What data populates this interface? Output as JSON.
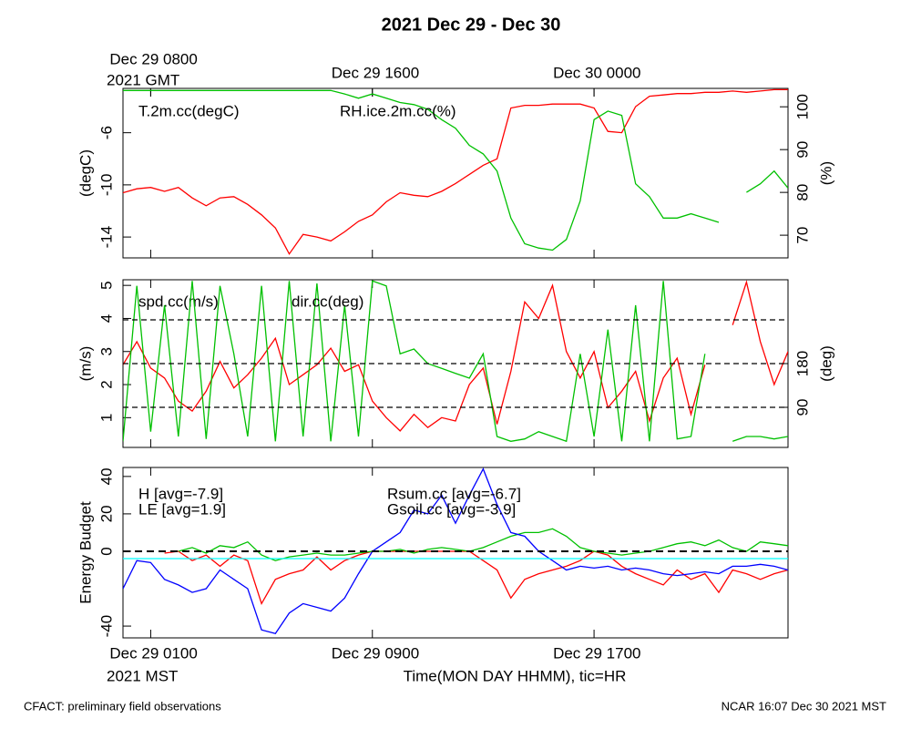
{
  "title": "2021 Dec 29 - Dec 30",
  "footer_left": "CFACT: preliminary field observations",
  "footer_right": "NCAR 16:07 Dec 30 2021 MST",
  "chart_data": [
    {
      "type": "line",
      "x": [
        0,
        0.5,
        1,
        1.5,
        2,
        2.5,
        3,
        3.5,
        4,
        4.5,
        5,
        5.5,
        6,
        6.5,
        7,
        7.5,
        8,
        8.5,
        9,
        9.5,
        10,
        10.5,
        11,
        11.5,
        12,
        12.5,
        13,
        13.5,
        14,
        14.5,
        15,
        15.5,
        16,
        16.5,
        17,
        17.5,
        18,
        18.5,
        19,
        19.5,
        20,
        20.5,
        21,
        21.5,
        22,
        22.5,
        23,
        23.5,
        24
      ],
      "xlim": [
        0,
        24
      ],
      "xticks": [
        1,
        9,
        17
      ],
      "x2ticks": [
        {
          "value": 1,
          "label": "Dec 29 0800"
        },
        {
          "value": 9,
          "label": "Dec 29 1600"
        },
        {
          "value": 17,
          "label": "Dec 30 0000"
        }
      ],
      "x2_zone": "2021 GMT",
      "ylim": [
        -15.6,
        -2.6
      ],
      "yticks": [
        -14,
        -10,
        -6
      ],
      "ylabel": "(degC)",
      "y2lim": [
        64.7,
        104.3
      ],
      "y2ticks": [
        70,
        80,
        90,
        100
      ],
      "y2label": "(%)",
      "series": [
        {
          "name": "T.2m.cc(degC)",
          "color": "#ff0000",
          "values": [
            -10.6,
            -10.3,
            -10.2,
            -10.5,
            -10.2,
            -11,
            -11.6,
            -11,
            -10.9,
            -11.5,
            -12.3,
            -13.3,
            -15.3,
            -13.8,
            -14,
            -14.3,
            -13.6,
            -12.8,
            -12.3,
            -11.3,
            -10.6,
            -10.8,
            -10.9,
            -10.5,
            -9.9,
            -9.2,
            -8.5,
            -8,
            -4.1,
            -3.9,
            -3.9,
            -3.8,
            -3.8,
            -3.8,
            -4.1,
            -5.9,
            -6,
            -4,
            -3.2,
            -3.1,
            -3.0,
            -3.0,
            -2.9,
            -2.9,
            -2.8,
            -2.9,
            -2.8,
            -2.7,
            -2.7
          ]
        },
        {
          "name": "RH.ice.2m.cc(%)",
          "color": "#00c000",
          "axis": "y2",
          "values": [
            103.8,
            103.8,
            103.8,
            103.8,
            103.8,
            103.8,
            103.8,
            103.8,
            103.8,
            103.8,
            103.8,
            103.8,
            103.8,
            103.8,
            103.8,
            103.8,
            103,
            102,
            103,
            102,
            101,
            100.5,
            99.4,
            97,
            95,
            91,
            89,
            85,
            74,
            68,
            67,
            66.5,
            69,
            78,
            97,
            99,
            98,
            82,
            79,
            74,
            74,
            75,
            74,
            73,
            null,
            80,
            82,
            85,
            81
          ]
        }
      ]
    },
    {
      "type": "line",
      "x": [
        0,
        0.5,
        1,
        1.5,
        2,
        2.5,
        3,
        3.5,
        4,
        4.5,
        5,
        5.5,
        6,
        6.5,
        7,
        7.5,
        8,
        8.5,
        9,
        9.5,
        10,
        10.5,
        11,
        11.5,
        12,
        12.5,
        13,
        13.5,
        14,
        14.5,
        15,
        15.5,
        16,
        16.5,
        17,
        17.5,
        18,
        18.5,
        19,
        19.5,
        20,
        20.5,
        21,
        21.5,
        22,
        22.5,
        23,
        23.5,
        24
      ],
      "xlim": [
        0,
        24
      ],
      "xticks": [
        1,
        9,
        17
      ],
      "ylim": [
        0.1,
        5.17
      ],
      "yticks": [
        1,
        2,
        3,
        4,
        5
      ],
      "ylabel": "(m/s)",
      "y2lim": [
        7.5,
        352.5
      ],
      "y2ticks": [
        90,
        180
      ],
      "y2label": "(deg)",
      "ref_lines_y2": [
        90,
        180,
        270
      ],
      "series": [
        {
          "name": "spd.cc(m/s)",
          "color": "#ff0000",
          "values": [
            2.6,
            3.3,
            2.5,
            2.2,
            1.5,
            1.2,
            1.8,
            2.7,
            1.9,
            2.3,
            2.8,
            3.4,
            2.0,
            2.3,
            2.6,
            3.1,
            2.4,
            2.6,
            1.5,
            1.0,
            0.6,
            1.1,
            0.7,
            1.0,
            0.9,
            2.0,
            2.5,
            0.8,
            2.4,
            4.5,
            4.0,
            5.0,
            3.0,
            2.2,
            3.0,
            1.3,
            1.8,
            2.4,
            0.9,
            2.2,
            2.8,
            1.1,
            2.6,
            null,
            3.8,
            5.1,
            3.3,
            2.0,
            3.0
          ]
        },
        {
          "name": "dir.cc(deg)",
          "color": "#00c000",
          "axis": "y2",
          "values": [
            20,
            340,
            40,
            300,
            30,
            350,
            25,
            340,
            200,
            30,
            340,
            20,
            350,
            30,
            345,
            20,
            300,
            30,
            350,
            340,
            200,
            210,
            180,
            170,
            160,
            150,
            200,
            30,
            20,
            25,
            40,
            30,
            20,
            200,
            30,
            250,
            20,
            300,
            20,
            350,
            25,
            30,
            200,
            null,
            20,
            30,
            30,
            25,
            30
          ]
        }
      ]
    },
    {
      "type": "line",
      "x": [
        0,
        0.5,
        1,
        1.5,
        2,
        2.5,
        3,
        3.5,
        4,
        4.5,
        5,
        5.5,
        6,
        6.5,
        7,
        7.5,
        8,
        8.5,
        9,
        9.5,
        10,
        10.5,
        11,
        11.5,
        12,
        12.5,
        13,
        13.5,
        14,
        14.5,
        15,
        15.5,
        16,
        16.5,
        17,
        17.5,
        18,
        18.5,
        19,
        19.5,
        20,
        20.5,
        21,
        21.5,
        22,
        22.5,
        23,
        23.5,
        24
      ],
      "xlim": [
        0,
        24
      ],
      "xticks": [
        {
          "value": 1,
          "label": "Dec 29 0100"
        },
        {
          "value": 9,
          "label": "Dec 29 0900"
        },
        {
          "value": 17,
          "label": "Dec 29 1700"
        }
      ],
      "x_zone": "2021 MST",
      "xlabel": "Time(MON DAY HHMM), tic=HR",
      "ylim": [
        -46.3,
        44.8
      ],
      "yticks": [
        -40,
        0,
        20,
        40
      ],
      "ylabel": "Energy Budget",
      "ref_lines": [
        0
      ],
      "series": [
        {
          "name": "H [avg=-7.9]",
          "color": "#ff0000",
          "values": [
            null,
            null,
            null,
            -1,
            0,
            -5,
            -2,
            -8,
            -2,
            -5,
            -28,
            -15,
            -12,
            -10,
            -3,
            -10,
            -5,
            -2,
            0,
            0,
            0,
            0,
            0,
            0,
            0,
            0,
            -5,
            -10,
            -25,
            -15,
            -12,
            -10,
            -8,
            -5,
            0,
            -2,
            -8,
            -12,
            -15,
            -18,
            -10,
            -15,
            -12,
            -22,
            -10,
            -12,
            -15,
            -12,
            -10
          ]
        },
        {
          "name": "LE [avg=1.9]",
          "color": "#00c000",
          "values": [
            null,
            null,
            null,
            null,
            0,
            2,
            -1,
            3,
            2,
            5,
            -2,
            -5,
            -3,
            -2,
            -1,
            -2,
            -2,
            -1,
            0,
            0,
            1,
            -1,
            1,
            2,
            1,
            0,
            2,
            5,
            8,
            10,
            10,
            12,
            8,
            2,
            0,
            -1,
            -2,
            -1,
            0,
            2,
            4,
            5,
            3,
            6,
            2,
            0,
            5,
            4,
            3
          ]
        },
        {
          "name": "Rsum.cc [avg=-6.7]",
          "color": "#0000ff",
          "values": [
            -20,
            -5,
            -6,
            -15,
            -18,
            -22,
            -20,
            -10,
            -15,
            -20,
            -42,
            -44,
            -33,
            -28,
            -30,
            -32,
            -25,
            -12,
            0,
            5,
            10,
            22,
            20,
            30,
            15,
            30,
            44,
            25,
            10,
            8,
            0,
            -5,
            -10,
            -8,
            -9,
            -8,
            -10,
            -9,
            -10,
            -12,
            -13,
            -12,
            -11,
            -12,
            -8,
            -8,
            -7,
            -8,
            -10
          ]
        },
        {
          "name": "Gsoil.cc [avg=-3.9]",
          "color": "#00ffff",
          "values": [
            -3.9,
            -3.9,
            -3.9,
            -3.9,
            -3.9,
            -3.9,
            -3.9,
            -3.9,
            -3.9,
            -3.9,
            -3.9,
            -3.9,
            -3.9,
            -3.9,
            -3.9,
            -3.9,
            -3.9,
            -3.9,
            -3.9,
            -3.9,
            -3.9,
            -3.9,
            -3.9,
            -3.9,
            -3.9,
            -3.9,
            -3.9,
            -3.9,
            -3.9,
            -3.9,
            -3.9,
            -3.9,
            -3.9,
            -3.9,
            -3.9,
            -3.9,
            -3.9,
            -3.9,
            -3.9,
            -3.9,
            -3.9,
            -3.9,
            -3.9,
            -3.9,
            -3.9,
            -3.9,
            -3.9,
            -3.9,
            -3.9
          ]
        }
      ]
    }
  ]
}
